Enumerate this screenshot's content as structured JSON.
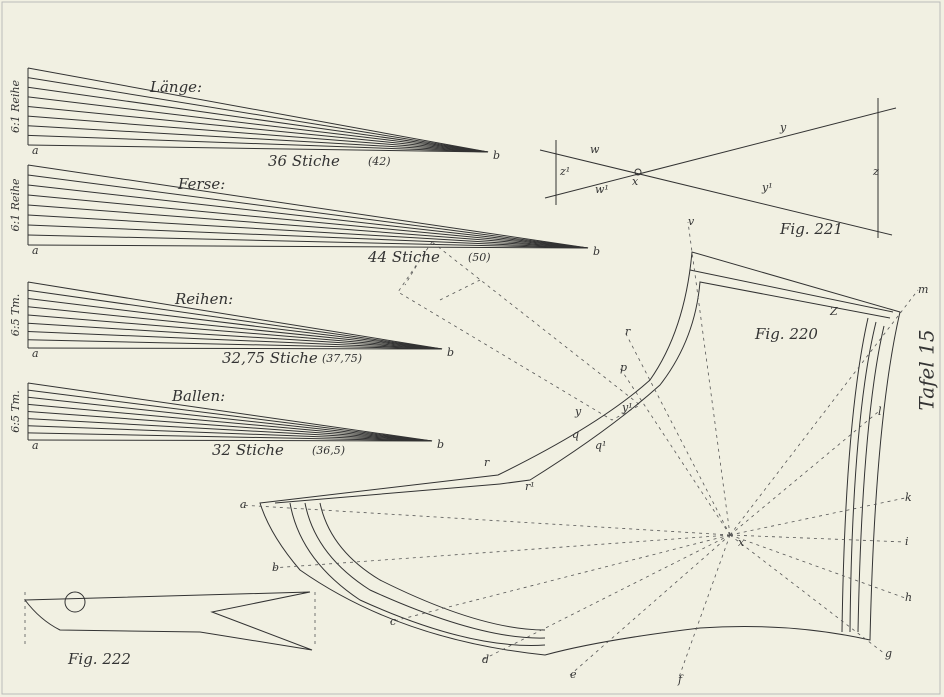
{
  "fans": [
    {
      "title": "Länge:",
      "side": "6:1 Reihe",
      "start": "a",
      "end": "b",
      "stitches": "36 Stiche",
      "alt": "(42)"
    },
    {
      "title": "Ferse:",
      "side": "6:1 Reihe",
      "start": "a",
      "end": "b",
      "stitches": "44 Stiche",
      "alt": "(50)"
    },
    {
      "title": "Reihen:",
      "side": "6:5 Tm.",
      "start": "a",
      "end": "b",
      "stitches": "32,75 Stiche",
      "alt": "(37,75)"
    },
    {
      "title": "Ballen:",
      "side": "6:5 Tm.",
      "start": "a",
      "end": "b",
      "stitches": "32 Stiche",
      "alt": "(36,5)"
    }
  ],
  "fig221": {
    "caption": "Fig. 221",
    "labels": [
      "w",
      "z¹",
      "w¹",
      "x",
      "y",
      "y¹",
      "z"
    ]
  },
  "fig220": {
    "caption": "Fig. 220",
    "labels": [
      "v",
      "m",
      "Z",
      "r",
      "p",
      "y",
      "q",
      "y¹",
      "q¹",
      "r",
      "r¹",
      "x",
      "a",
      "b",
      "c",
      "d",
      "e",
      "f",
      "g",
      "h",
      "i",
      "k",
      "l"
    ]
  },
  "fig222": {
    "caption": "Fig. 222"
  },
  "plate": "Tafel 15"
}
